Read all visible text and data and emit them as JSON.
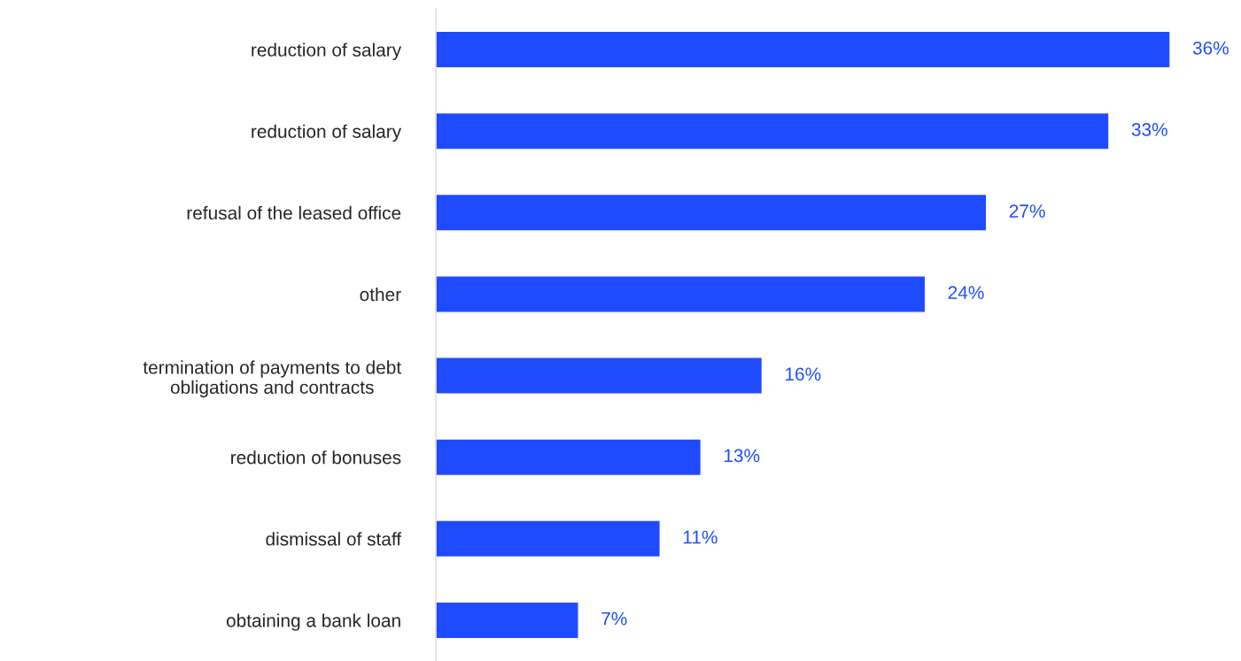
{
  "chart_data": {
    "type": "bar",
    "orientation": "horizontal",
    "categories": [
      "reduction of salary",
      "reduction of salary",
      "refusal of the leased office",
      "other",
      "termination of payments to debt\nobligations and contracts",
      "reduction of bonuses",
      "dismissal of staff",
      "obtaining a bank loan"
    ],
    "values": [
      36,
      33,
      27,
      24,
      16,
      13,
      11,
      7
    ],
    "value_labels": [
      "36%",
      "33%",
      "27%",
      "24%",
      "16%",
      "13%",
      "11%",
      "7%"
    ],
    "color": "#1f4bff",
    "grid": false,
    "legend": false
  }
}
